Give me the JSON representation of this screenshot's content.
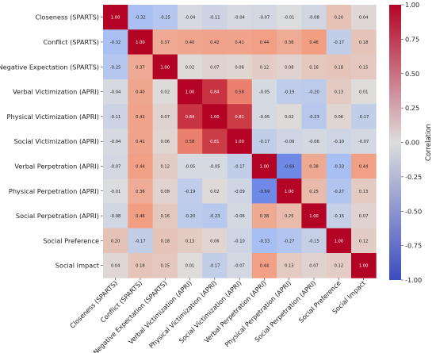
{
  "chart_data": {
    "type": "heatmap",
    "title": "",
    "xlabel": "",
    "ylabel": "",
    "labels": [
      "Closeness (SPARTS)",
      "Conflict (SPARTS)",
      "Negative Expectation (SPARTS)",
      "Verbal Victimization (APRI)",
      "Physical Victimization (APRI)",
      "Social Victimization (APRI)",
      "Verbal Perpetration (APRI)",
      "Physical Perpetration (APRI)",
      "Social Perpetration (APRI)",
      "Social Preference",
      "Social Impact"
    ],
    "matrix": [
      [
        1.0,
        -0.32,
        -0.25,
        -0.04,
        -0.11,
        -0.04,
        -0.07,
        -0.01,
        -0.08,
        0.2,
        0.04
      ],
      [
        -0.32,
        1.0,
        0.37,
        0.4,
        0.42,
        0.41,
        0.44,
        0.36,
        0.46,
        -0.17,
        0.18
      ],
      [
        -0.25,
        0.37,
        1.0,
        0.02,
        0.07,
        0.06,
        0.12,
        0.08,
        0.16,
        0.18,
        0.15
      ],
      [
        -0.04,
        0.4,
        0.02,
        1.0,
        0.84,
        0.58,
        -0.05,
        -0.19,
        -0.2,
        0.13,
        0.01
      ],
      [
        -0.11,
        0.42,
        0.07,
        0.84,
        1.0,
        0.81,
        -0.05,
        0.02,
        -0.23,
        0.06,
        -0.17
      ],
      [
        -0.04,
        0.41,
        0.06,
        0.58,
        0.81,
        1.0,
        -0.17,
        -0.09,
        -0.06,
        -0.1,
        -0.07
      ],
      [
        -0.07,
        0.44,
        0.12,
        -0.05,
        -0.05,
        -0.17,
        1.0,
        -0.69,
        0.38,
        -0.33,
        0.44
      ],
      [
        -0.01,
        0.36,
        0.08,
        -0.19,
        0.02,
        -0.09,
        -0.69,
        1.0,
        0.25,
        -0.27,
        0.13
      ],
      [
        -0.08,
        0.46,
        0.16,
        -0.2,
        -0.23,
        -0.06,
        0.38,
        0.25,
        1.0,
        -0.15,
        0.07
      ],
      [
        0.2,
        -0.17,
        0.18,
        0.13,
        0.06,
        -0.1,
        -0.33,
        -0.27,
        -0.15,
        1.0,
        0.12
      ],
      [
        0.04,
        0.18,
        0.15,
        0.01,
        -0.17,
        -0.07,
        0.44,
        0.13,
        0.07,
        0.12,
        1.0
      ]
    ],
    "colorbar": {
      "label": "Correlation",
      "range": [
        -1.0,
        1.0
      ],
      "ticks": [
        "1.00",
        "0.75",
        "0.50",
        "0.25",
        "0.00",
        "-0.25",
        "-0.50",
        "-0.75",
        "-1.00"
      ],
      "colormap": "coolwarm",
      "low_color": "#3b4cc0",
      "mid_color": "#dddddd",
      "high_color": "#b40426"
    },
    "grid": false
  }
}
